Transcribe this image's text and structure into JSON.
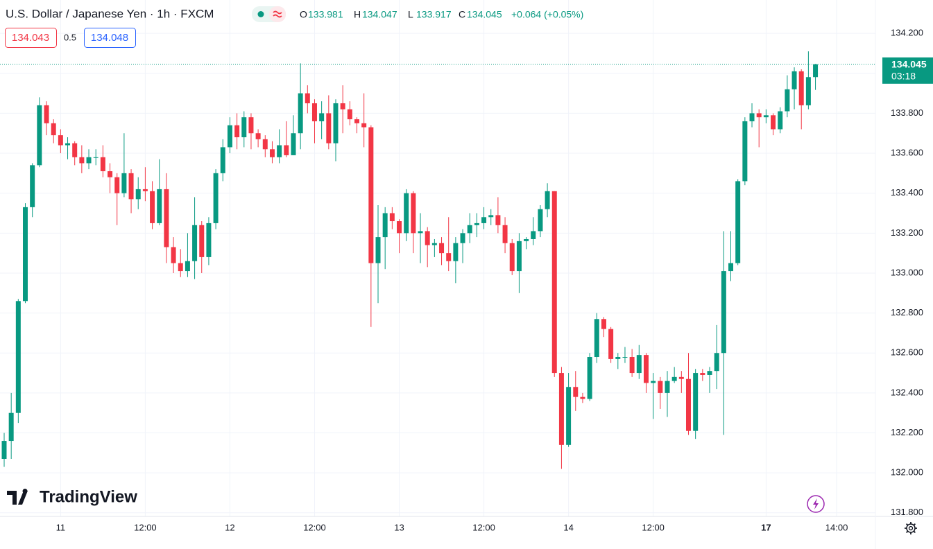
{
  "chart_data": {
    "type": "candlestick",
    "title": "U.S. Dollar / Japanese Yen · 1h · FXCM",
    "ohlc_labels": [
      "O",
      "H",
      "L",
      "C"
    ],
    "change": "+0.064 (+0.05%)",
    "bid": 134.043,
    "spread": 0.5,
    "ask": 134.048,
    "countdown": "03:18",
    "watermark": "TradingView",
    "up_color": "#089981",
    "down_color": "#f23645",
    "grid": true,
    "ylim": [
      131.782,
      134.367
    ],
    "yticks": [
      {
        "value": 131.8,
        "label": "131.800"
      },
      {
        "value": 132.0,
        "label": "132.000"
      },
      {
        "value": 132.2,
        "label": "132.200"
      },
      {
        "value": 132.4,
        "label": "132.400"
      },
      {
        "value": 132.6,
        "label": "132.600"
      },
      {
        "value": 132.8,
        "label": "132.800"
      },
      {
        "value": 133.0,
        "label": "133.000"
      },
      {
        "value": 133.2,
        "label": "133.200"
      },
      {
        "value": 133.4,
        "label": "133.400"
      },
      {
        "value": 133.6,
        "label": "133.600"
      },
      {
        "value": 133.8,
        "label": "133.800"
      },
      {
        "value": 134.0,
        "label": "134.000"
      },
      {
        "value": 134.2,
        "label": "134.200"
      }
    ],
    "xlim": [
      -0.59,
      123.5
    ],
    "xticks": [
      {
        "value": 8,
        "label": "11"
      },
      {
        "value": 20,
        "label": "12:00"
      },
      {
        "value": 32,
        "label": "12"
      },
      {
        "value": 44,
        "label": "12:00"
      },
      {
        "value": 56,
        "label": "13"
      },
      {
        "value": 68,
        "label": "12:00"
      },
      {
        "value": 80,
        "label": "14"
      },
      {
        "value": 92,
        "label": "12:00"
      },
      {
        "value": 108,
        "label": "17"
      },
      {
        "value": 118,
        "label": "14:00"
      }
    ],
    "open": [
      132.07,
      132.16,
      132.3,
      132.86,
      133.33,
      133.54,
      133.84,
      133.75,
      133.69,
      133.64,
      133.65,
      133.58,
      133.55,
      133.58,
      133.58,
      133.51,
      133.48,
      133.4,
      133.5,
      133.37,
      133.42,
      133.41,
      133.25,
      133.42,
      133.13,
      133.05,
      133.01,
      133.06,
      133.24,
      133.08,
      133.25,
      133.5,
      133.63,
      133.74,
      133.68,
      133.78,
      133.7,
      133.67,
      133.62,
      133.58,
      133.64,
      133.59,
      133.7,
      133.9,
      133.85,
      133.76,
      133.8,
      133.65,
      133.85,
      133.82,
      133.77,
      133.75,
      133.73,
      133.05,
      133.18,
      133.3,
      133.26,
      133.2,
      133.4,
      133.2,
      133.21,
      133.14,
      133.15,
      133.1,
      133.06,
      133.15,
      133.2,
      133.24,
      133.25,
      133.28,
      133.29,
      133.24,
      133.15,
      133.01,
      133.16,
      133.17,
      133.21,
      133.32,
      133.41,
      132.5,
      132.14,
      132.43,
      132.38,
      132.37,
      132.58,
      132.77,
      132.72,
      132.57,
      132.58,
      132.58,
      132.5,
      132.59,
      132.45,
      132.46,
      132.4,
      132.46,
      132.48,
      132.47,
      132.21,
      132.5,
      132.49,
      132.51,
      132.6,
      133.01,
      133.05,
      133.46,
      133.76,
      133.8,
      133.78,
      133.79,
      133.72,
      133.81,
      133.92,
      134.01,
      133.84,
      133.981
    ],
    "high": [
      132.2,
      132.4,
      132.87,
      133.35,
      133.55,
      133.88,
      133.86,
      133.77,
      133.72,
      133.68,
      133.66,
      133.64,
      133.62,
      133.62,
      133.64,
      133.55,
      133.5,
      133.7,
      133.52,
      133.48,
      133.53,
      133.46,
      133.57,
      133.5,
      133.18,
      133.12,
      133.2,
      133.38,
      133.26,
      133.28,
      133.52,
      133.67,
      133.78,
      133.8,
      133.81,
      133.8,
      133.72,
      133.69,
      133.66,
      133.72,
      133.76,
      133.79,
      134.05,
      133.94,
      133.87,
      133.86,
      133.89,
      133.87,
      133.94,
      133.86,
      133.78,
      133.9,
      133.74,
      133.34,
      133.33,
      133.33,
      133.27,
      133.42,
      133.41,
      133.3,
      133.23,
      133.17,
      133.18,
      133.28,
      133.18,
      133.22,
      133.3,
      133.3,
      133.33,
      133.32,
      133.38,
      133.28,
      133.17,
      133.2,
      133.18,
      133.28,
      133.34,
      133.45,
      133.41,
      132.53,
      132.5,
      132.51,
      132.4,
      132.6,
      132.8,
      132.78,
      132.73,
      132.6,
      132.63,
      132.62,
      132.64,
      132.6,
      132.5,
      132.48,
      132.51,
      132.53,
      132.51,
      132.6,
      132.52,
      132.52,
      132.53,
      132.74,
      133.21,
      133.21,
      133.47,
      133.78,
      133.85,
      133.82,
      133.82,
      133.8,
      133.83,
      133.99,
      134.03,
      134.02,
      134.11,
      134.047
    ],
    "low": [
      132.03,
      132.07,
      132.25,
      132.85,
      133.28,
      133.53,
      133.69,
      133.65,
      133.6,
      133.57,
      133.54,
      133.5,
      133.52,
      133.54,
      133.48,
      133.4,
      133.24,
      133.38,
      133.3,
      133.32,
      133.36,
      133.22,
      133.24,
      133.05,
      133.0,
      132.98,
      132.98,
      132.97,
      133.0,
      133.04,
      133.22,
      133.46,
      133.6,
      133.62,
      133.63,
      133.62,
      133.63,
      133.58,
      133.55,
      133.55,
      133.58,
      133.6,
      133.62,
      133.8,
      133.65,
      133.67,
      133.62,
      133.56,
      133.7,
      133.74,
      133.7,
      133.63,
      132.73,
      132.85,
      133.02,
      133.22,
      133.1,
      133.16,
      133.1,
      133.05,
      133.03,
      133.08,
      133.04,
      133.01,
      132.95,
      133.05,
      133.15,
      133.18,
      133.22,
      133.24,
      133.2,
      133.1,
      132.99,
      132.9,
      133.12,
      133.14,
      133.18,
      133.28,
      132.48,
      132.02,
      132.13,
      132.31,
      132.35,
      132.36,
      132.55,
      132.68,
      132.55,
      132.52,
      132.55,
      132.48,
      132.47,
      132.4,
      132.27,
      132.32,
      132.28,
      132.45,
      132.4,
      132.19,
      132.17,
      132.46,
      132.4,
      132.42,
      132.19,
      132.96,
      133.04,
      133.44,
      133.73,
      133.63,
      133.75,
      133.69,
      133.7,
      133.78,
      133.82,
      133.72,
      133.82,
      133.917
    ],
    "close": [
      132.16,
      132.3,
      132.86,
      133.33,
      133.54,
      133.84,
      133.75,
      133.69,
      133.64,
      133.65,
      133.58,
      133.55,
      133.58,
      133.58,
      133.51,
      133.48,
      133.4,
      133.5,
      133.37,
      133.42,
      133.41,
      133.25,
      133.42,
      133.13,
      133.05,
      133.01,
      133.06,
      133.24,
      133.08,
      133.25,
      133.5,
      133.63,
      133.74,
      133.68,
      133.78,
      133.7,
      133.67,
      133.62,
      133.58,
      133.64,
      133.59,
      133.7,
      133.9,
      133.85,
      133.76,
      133.8,
      133.65,
      133.85,
      133.82,
      133.77,
      133.75,
      133.73,
      133.05,
      133.18,
      133.3,
      133.26,
      133.2,
      133.4,
      133.2,
      133.21,
      133.14,
      133.15,
      133.1,
      133.06,
      133.15,
      133.2,
      133.24,
      133.25,
      133.28,
      133.29,
      133.24,
      133.15,
      133.01,
      133.16,
      133.17,
      133.21,
      133.32,
      133.41,
      132.5,
      132.14,
      132.43,
      132.38,
      132.37,
      132.58,
      132.77,
      132.72,
      132.57,
      132.58,
      132.58,
      132.5,
      132.59,
      132.45,
      132.46,
      132.4,
      132.46,
      132.48,
      132.47,
      132.21,
      132.5,
      132.49,
      132.51,
      132.6,
      133.01,
      133.05,
      133.46,
      133.76,
      133.8,
      133.78,
      133.79,
      133.72,
      133.81,
      133.92,
      134.01,
      133.84,
      133.981,
      134.045
    ]
  }
}
